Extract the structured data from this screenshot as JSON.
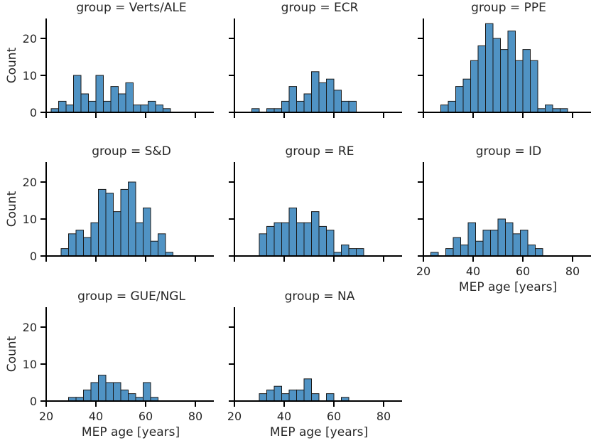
{
  "chart_data": {
    "type": "bar",
    "xlabel": "MEP age [years]",
    "ylabel": "Count",
    "xlim": [
      20,
      86
    ],
    "ylim": [
      0,
      25
    ],
    "xticks": [
      20,
      40,
      60,
      80
    ],
    "yticks": [
      0,
      10,
      20
    ],
    "bin_width": 3,
    "color": "#5093c4",
    "panels": [
      {
        "title": "group = Verts/ALE",
        "bin_start": 22,
        "counts": [
          1,
          3,
          2,
          10,
          5,
          3,
          10,
          3,
          7,
          5,
          8,
          2,
          2,
          3,
          2,
          1
        ]
      },
      {
        "title": "group = ECR",
        "bin_start": 27,
        "counts": [
          1,
          0,
          1,
          1,
          3,
          7,
          3,
          5,
          11,
          8,
          9,
          6,
          3,
          3
        ]
      },
      {
        "title": "group = PPE",
        "bin_start": 27,
        "counts": [
          2,
          3,
          7,
          9,
          14,
          18,
          24,
          20,
          17,
          22,
          14,
          17,
          14,
          1,
          2,
          1,
          1
        ]
      },
      {
        "title": "group = S&D",
        "bin_start": 26,
        "counts": [
          2,
          6,
          7,
          5,
          9,
          18,
          17,
          12,
          18,
          20,
          9,
          13,
          4,
          6,
          1
        ]
      },
      {
        "title": "group = RE",
        "bin_start": 30,
        "counts": [
          6,
          8,
          9,
          9,
          13,
          9,
          9,
          12,
          8,
          7,
          1,
          3,
          2,
          2
        ]
      },
      {
        "title": "group = ID",
        "bin_start": 23,
        "counts": [
          1,
          0,
          2,
          5,
          3,
          9,
          4,
          7,
          7,
          10,
          9,
          6,
          7,
          3,
          2
        ]
      },
      {
        "title": "group = GUE/NGL",
        "bin_start": 29,
        "counts": [
          1,
          1,
          3,
          5,
          7,
          5,
          5,
          3,
          2,
          1,
          5,
          1
        ]
      },
      {
        "title": "group = NA",
        "bin_start": 30,
        "counts": [
          2,
          3,
          4,
          2,
          3,
          3,
          6,
          2,
          0,
          2,
          0,
          1
        ]
      }
    ]
  }
}
